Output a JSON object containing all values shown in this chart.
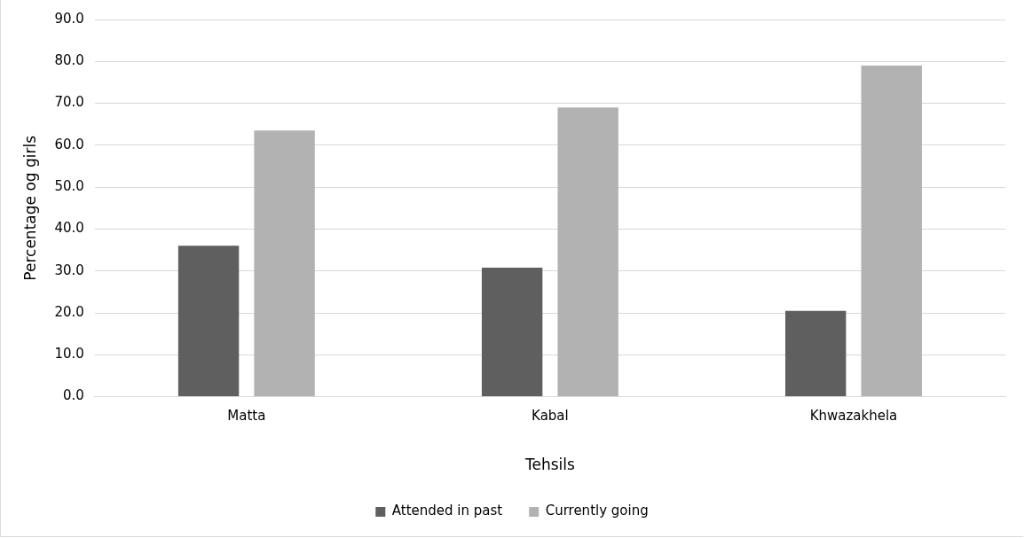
{
  "chart_data": {
    "type": "bar",
    "xlabel": "Tehsils",
    "ylabel": "Percentage og girls",
    "categories": [
      "Matta",
      "Kabal",
      "Khwazakhela"
    ],
    "series": [
      {
        "name": "Attended in past",
        "color": "#5f5f5f",
        "values": [
          36.0,
          30.8,
          20.5
        ]
      },
      {
        "name": "Currently going",
        "color": "#b2b2b2",
        "values": [
          63.5,
          69.0,
          79.0
        ]
      }
    ],
    "ylim": [
      0,
      90
    ],
    "yticks": [
      {
        "value": 0,
        "label": "0.0"
      },
      {
        "value": 10,
        "label": "10.0"
      },
      {
        "value": 20,
        "label": "20.0"
      },
      {
        "value": 30,
        "label": "30.0"
      },
      {
        "value": 40,
        "label": "40.0"
      },
      {
        "value": 50,
        "label": "50.0"
      },
      {
        "value": 60,
        "label": "60.0"
      },
      {
        "value": 70,
        "label": "70.0"
      },
      {
        "value": 80,
        "label": "80.0"
      },
      {
        "value": 90,
        "label": "90.0"
      }
    ],
    "grid": "y",
    "legend": "bottom"
  }
}
